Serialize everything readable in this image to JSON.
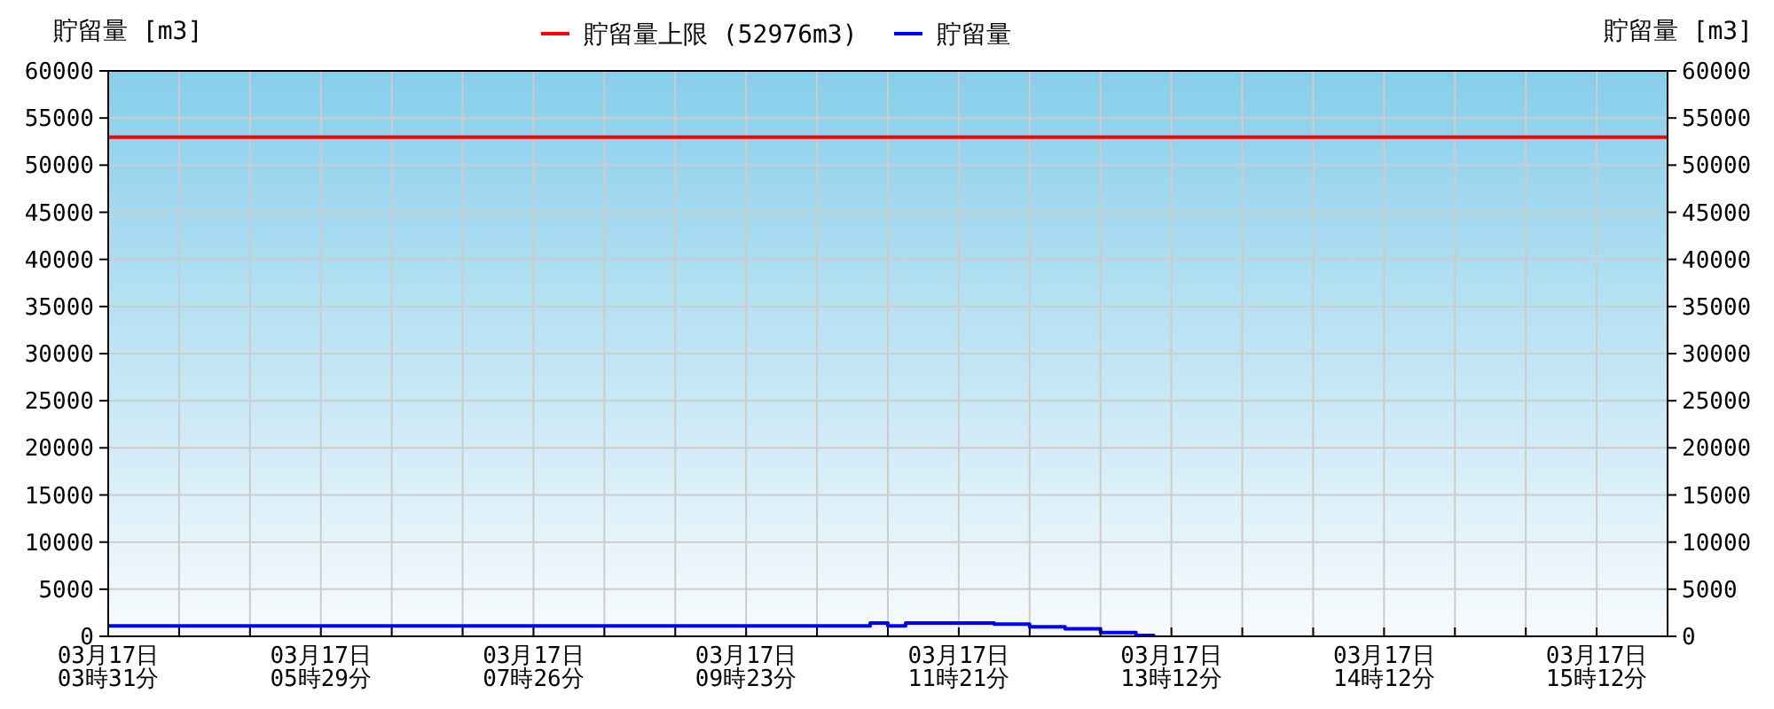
{
  "chart_data": {
    "type": "step",
    "ylabel": "貯留量 [m3]",
    "y2label": "貯留量 [m3]",
    "categories": [
      "03月17日\n03時31分",
      null,
      null,
      null,
      null,
      null,
      null,
      null,
      null,
      null,
      null,
      null,
      "03月17日\n05時29分",
      null,
      null,
      null,
      null,
      null,
      null,
      null,
      null,
      null,
      null,
      null,
      "03月17日\n07時26分",
      null,
      null,
      null,
      null,
      null,
      null,
      null,
      null,
      null,
      null,
      null,
      "03月17日\n09時23分",
      null,
      null,
      null,
      null,
      null,
      null,
      null,
      null,
      null,
      null,
      null,
      "03月17日\n11時21分",
      null,
      null,
      null,
      null,
      null,
      null,
      null,
      null,
      null,
      null,
      null,
      "03月17日\n13時12分",
      null,
      null,
      null,
      null,
      null,
      null,
      null,
      null,
      null,
      null,
      null,
      "03月17日\n14時12分",
      null,
      null,
      null,
      null,
      null,
      null,
      null,
      null,
      null,
      null,
      null,
      "03月17日\n15時12分",
      null,
      null,
      null,
      null
    ],
    "series": [
      {
        "name": "貯留量",
        "color": "#0000ff",
        "values": [
          1100,
          1100,
          1100,
          1100,
          1100,
          1100,
          1100,
          1100,
          1100,
          1100,
          1100,
          1100,
          1100,
          1100,
          1100,
          1100,
          1100,
          1100,
          1100,
          1100,
          1100,
          1100,
          1100,
          1100,
          1100,
          1100,
          1100,
          1100,
          1100,
          1100,
          1100,
          1100,
          1100,
          1100,
          1100,
          1100,
          1100,
          1100,
          1100,
          1100,
          1100,
          1100,
          1100,
          1400,
          1100,
          1400,
          1400,
          1400,
          1400,
          1400,
          1300,
          1300,
          1000,
          1000,
          800,
          800,
          400,
          400,
          100,
          0,
          null,
          null,
          null,
          null,
          null,
          null,
          null,
          null,
          null,
          null,
          null,
          null,
          null,
          null,
          null,
          null,
          null,
          null,
          null,
          null,
          null,
          null,
          null,
          null,
          null,
          null,
          null,
          null,
          null
        ]
      }
    ],
    "ref_lines": [
      {
        "axis": "y",
        "value": 52976,
        "label": "貯留量上限 (52976m3)",
        "color": "#ff0000"
      }
    ],
    "ylim": [
      0,
      60000
    ],
    "yticks": [
      0,
      5000,
      10000,
      15000,
      20000,
      25000,
      30000,
      35000,
      40000,
      45000,
      50000,
      55000,
      60000
    ],
    "y2lim": [
      0,
      60000
    ],
    "y2ticks": [
      0,
      5000,
      10000,
      15000,
      20000,
      25000,
      30000,
      35000,
      40000,
      45000,
      50000,
      55000,
      60000
    ],
    "grid": true,
    "legend": "top"
  }
}
